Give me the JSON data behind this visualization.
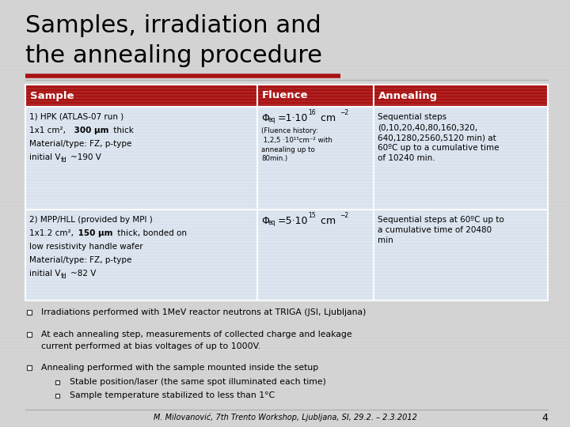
{
  "title_line1": "Samples, irradiation and",
  "title_line2": "the annealing procedure",
  "title_fontsize": 22,
  "bg_color": "#d4d4d4",
  "header_bg": "#aa1111",
  "header_text_color": "#ffffff",
  "table_cell_bg": "#dce6f1",
  "red_line_color": "#aa1111",
  "gray_line_color": "#aaaaaa",
  "footer_text": "M. Milovanović, 7th Trento Workshop, Ljubljana, SI, 29.2. – 2.3.2012",
  "footer_page": "4",
  "headers": [
    "Sample",
    "Fluence",
    "Annealing"
  ],
  "bullet1": "Irradiations performed with 1MeV reactor neutrons at TRIGA (JSI, Ljubljana)",
  "bullet2a": "At each annealing step, measurements of collected charge and leakage",
  "bullet2b": "current performed at bias voltages of up to 1000V.",
  "bullet3": "Annealing performed with the sample mounted inside the setup",
  "sub_bullet1": "Stable position/laser (the same spot illuminated each time)",
  "sub_bullet2": "Sample temperature stabilized to less than 1°C"
}
